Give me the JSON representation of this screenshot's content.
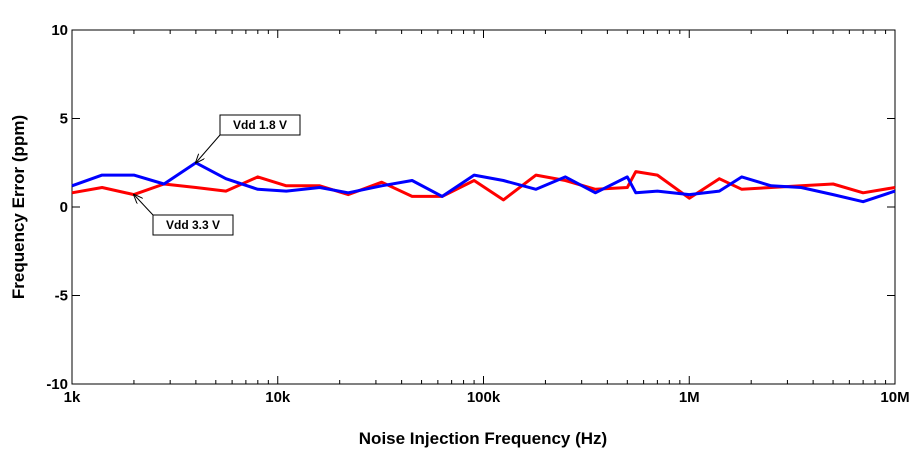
{
  "chart_data": {
    "type": "line",
    "title": "",
    "xlabel": "Noise Injection Frequency (Hz)",
    "ylabel": "Frequency Error (ppm)",
    "xscale": "log",
    "xlim": [
      1000,
      10000000
    ],
    "ylim": [
      -10,
      10
    ],
    "grid": false,
    "x_tick_labels": [
      "1k",
      "10k",
      "100k",
      "1M",
      "10M"
    ],
    "y_tick_labels": [
      "10",
      "5",
      "0",
      "-5",
      "-10"
    ],
    "series": [
      {
        "name": "Vdd 1.8 V",
        "color": "#0000ff",
        "x": [
          1000,
          1400,
          2000,
          2800,
          4000,
          5600,
          8000,
          11000,
          16000,
          22000,
          32000,
          45000,
          63000,
          90000,
          125000,
          180000,
          250000,
          350000,
          500000,
          550000,
          700000,
          1000000,
          1400000,
          1800000,
          2500000,
          3500000,
          5000000,
          7000000,
          10000000
        ],
        "y": [
          1.2,
          1.8,
          1.8,
          1.3,
          2.5,
          1.6,
          1.0,
          0.9,
          1.1,
          0.8,
          1.2,
          1.5,
          0.6,
          1.8,
          1.5,
          1.0,
          1.7,
          0.8,
          1.7,
          0.8,
          0.9,
          0.7,
          0.9,
          1.7,
          1.2,
          1.1,
          0.7,
          0.3,
          0.9
        ]
      },
      {
        "name": "Vdd 3.3 V",
        "color": "#ff0000",
        "x": [
          1000,
          1400,
          2000,
          2800,
          4000,
          5600,
          8000,
          11000,
          16000,
          22000,
          32000,
          45000,
          63000,
          90000,
          125000,
          180000,
          250000,
          350000,
          500000,
          550000,
          700000,
          1000000,
          1400000,
          1800000,
          2500000,
          3500000,
          5000000,
          7000000,
          10000000
        ],
        "y": [
          0.8,
          1.1,
          0.7,
          1.3,
          1.1,
          0.9,
          1.7,
          1.2,
          1.2,
          0.7,
          1.4,
          0.6,
          0.6,
          1.5,
          0.4,
          1.8,
          1.5,
          1.0,
          1.1,
          2.0,
          1.8,
          0.5,
          1.6,
          1.0,
          1.1,
          1.2,
          1.3,
          0.8,
          1.1
        ]
      }
    ],
    "annotations": [
      {
        "text": "Vdd 1.8 V",
        "target_x": 4000,
        "target_y": 2.5
      },
      {
        "text": "Vdd 3.3 V",
        "target_x": 2000,
        "target_y": 0.7
      }
    ]
  }
}
